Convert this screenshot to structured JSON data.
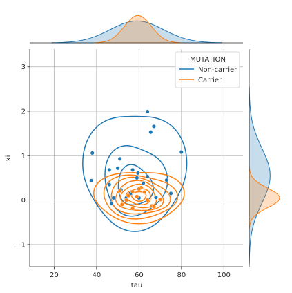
{
  "chart_data": {
    "type": "scatter",
    "subtype": "jointplot-kde",
    "xlabel": "tau",
    "ylabel": "xi",
    "xlim": [
      8.5,
      109
    ],
    "ylim": [
      -1.5,
      3.4
    ],
    "xticks": [
      20,
      40,
      60,
      80,
      100
    ],
    "yticks": [
      -1,
      0,
      1,
      2,
      3
    ],
    "grid": true,
    "legend": {
      "title": "MUTATION",
      "placement": "top-right",
      "entries": [
        "Non-carrier",
        "Carrier"
      ]
    },
    "colors": {
      "Non-carrier": "#1f77b4",
      "Carrier": "#ff7f0e"
    },
    "series": [
      {
        "name": "Non-carrier",
        "points": [
          [
            64,
            1.99
          ],
          [
            67,
            1.66
          ],
          [
            65.5,
            1.53
          ],
          [
            80,
            1.08
          ],
          [
            38,
            1.06
          ],
          [
            51,
            0.93
          ],
          [
            46,
            0.68
          ],
          [
            50,
            0.72
          ],
          [
            57,
            0.68
          ],
          [
            59.5,
            0.61
          ],
          [
            59,
            0.5
          ],
          [
            64,
            0.53
          ],
          [
            73,
            0.45
          ],
          [
            37.5,
            0.44
          ],
          [
            46,
            0.35
          ],
          [
            62,
            0.38
          ],
          [
            51.5,
            0.23
          ],
          [
            48,
            0.05
          ],
          [
            54,
            0.05
          ],
          [
            60,
            0.05
          ],
          [
            68,
            0.06
          ],
          [
            75,
            0.15
          ],
          [
            47,
            -0.08
          ],
          [
            56,
            0.15
          ]
        ]
      },
      {
        "name": "Carrier",
        "points": [
          [
            57,
            0.19
          ],
          [
            61,
            0.28
          ],
          [
            62.5,
            0.18
          ],
          [
            55,
            0.1
          ],
          [
            59,
            0.08
          ],
          [
            52,
            -0.1
          ],
          [
            57,
            -0.19
          ],
          [
            66,
            -0.13
          ],
          [
            70,
            0.01
          ],
          [
            64,
            0.0
          ],
          [
            51,
            0.21
          ],
          [
            60,
            0.25
          ],
          [
            54,
            0.0
          ],
          [
            67,
            -0.15
          ]
        ]
      }
    ],
    "kde_contours": [
      {
        "name": "Non-carrier",
        "levels": [
          {
            "cx": 58,
            "cy": 0.6,
            "rx": 23,
            "ry": 1.35
          },
          {
            "cx": 58,
            "cy": 0.4,
            "rx": 14,
            "ry": 0.8
          },
          {
            "cx": 58,
            "cy": 0.3,
            "rx": 8,
            "ry": 0.45
          }
        ]
      },
      {
        "name": "Carrier",
        "levels": [
          {
            "cx": 60,
            "cy": 0.05,
            "rx": 20,
            "ry": 0.6
          },
          {
            "cx": 60,
            "cy": 0.05,
            "rx": 16.5,
            "ry": 0.5
          },
          {
            "cx": 60,
            "cy": 0.06,
            "rx": 13.5,
            "ry": 0.41
          },
          {
            "cx": 60,
            "cy": 0.06,
            "rx": 11,
            "ry": 0.33
          },
          {
            "cx": 60,
            "cy": 0.07,
            "rx": 8.5,
            "ry": 0.25
          },
          {
            "cx": 60,
            "cy": 0.07,
            "rx": 6,
            "ry": 0.17
          },
          {
            "cx": 60,
            "cy": 0.08,
            "rx": 3.5,
            "ry": 0.1
          }
        ]
      }
    ],
    "marginal_x": [
      {
        "name": "Non-carrier",
        "mean": 59,
        "sd": 12.5,
        "peak": 1.0
      },
      {
        "name": "Carrier",
        "mean": 59.5,
        "sd": 6.3,
        "peak": 1.25
      }
    ],
    "marginal_y": [
      {
        "name": "Non-carrier",
        "mean": 0.55,
        "sd": 0.62,
        "peak": 1.0
      },
      {
        "name": "Carrier",
        "mean": 0.05,
        "sd": 0.22,
        "peak": 1.45
      }
    ]
  }
}
